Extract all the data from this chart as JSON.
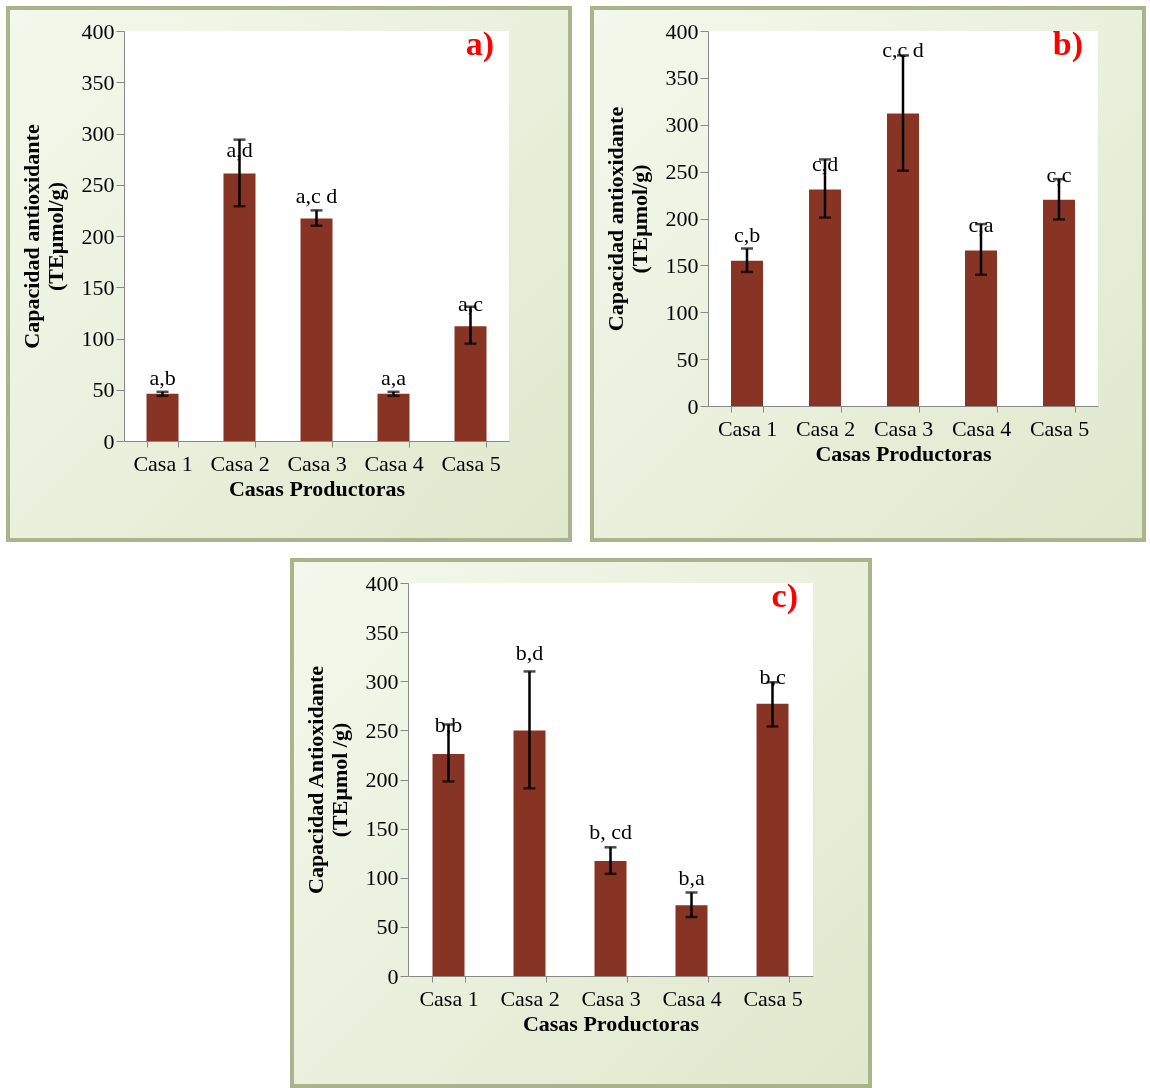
{
  "chart_data": [
    {
      "type": "bar",
      "title": "a)",
      "xlabel": "Casas Productoras",
      "ylabel": "Capacidad antioxidante\n(TEμmol/g)",
      "categories": [
        "Casa 1",
        "Casa 2",
        "Casa 3",
        "Casa 4",
        "Casa 5"
      ],
      "values": [
        46,
        261,
        217,
        46,
        112
      ],
      "color": "#873424",
      "errors": [
        [
          44,
          48
        ],
        [
          229,
          294
        ],
        [
          210,
          225
        ],
        [
          44,
          48
        ],
        [
          95,
          131
        ]
      ],
      "ylim": [
        0,
        400
      ],
      "yticks": [
        0,
        50,
        100,
        150,
        200,
        250,
        300,
        350,
        400
      ],
      "grid": false,
      "annotations": [
        {
          "text": "a,b",
          "x": "Casa 1",
          "y": 48
        },
        {
          "text": "a,d",
          "x": "Casa 2",
          "y": 270
        },
        {
          "text": "a,c d",
          "x": "Casa 3",
          "y": 225
        },
        {
          "text": "a,a",
          "x": "Casa 4",
          "y": 48
        },
        {
          "text": "a,c",
          "x": "Casa 5",
          "y": 120
        }
      ]
    },
    {
      "type": "bar",
      "title": "b)",
      "xlabel": "Casas Productoras",
      "ylabel": "Capacidad antioxidante\n(TEμmol/g)",
      "categories": [
        "Casa 1",
        "Casa 2",
        "Casa 3",
        "Casa 4",
        "Casa 5"
      ],
      "values": [
        155,
        231,
        312,
        166,
        220
      ],
      "color": "#873424",
      "errors": [
        [
          143,
          168
        ],
        [
          201,
          263
        ],
        [
          251,
          374
        ],
        [
          140,
          194
        ],
        [
          199,
          242
        ]
      ],
      "ylim": [
        0,
        400
      ],
      "yticks": [
        0,
        50,
        100,
        150,
        200,
        250,
        300,
        350,
        400
      ],
      "grid": false,
      "annotations": [
        {
          "text": "c,b",
          "x": "Casa 1",
          "y": 168
        },
        {
          "text": "c,d",
          "x": "Casa 2",
          "y": 243
        },
        {
          "text": "c,c d",
          "x": "Casa 3",
          "y": 365
        },
        {
          "text": "c,a",
          "x": "Casa 4",
          "y": 178
        },
        {
          "text": "c,c",
          "x": "Casa 5",
          "y": 232
        }
      ]
    },
    {
      "type": "bar",
      "title": "c)",
      "xlabel": "Casas Productoras",
      "ylabel": "Capacidad Antioxidante\n(TEμmol /g)",
      "categories": [
        "Casa 1",
        "Casa 2",
        "Casa 3",
        "Casa 4",
        "Casa 5"
      ],
      "values": [
        226,
        250,
        117,
        72,
        277
      ],
      "color": "#873424",
      "errors": [
        [
          198,
          256
        ],
        [
          191,
          310
        ],
        [
          104,
          131
        ],
        [
          60,
          85
        ],
        [
          254,
          299
        ]
      ],
      "ylim": [
        0,
        400
      ],
      "yticks": [
        0,
        50,
        100,
        150,
        200,
        250,
        300,
        350,
        400
      ],
      "grid": false,
      "annotations": [
        {
          "text": "b,b",
          "x": "Casa 1",
          "y": 241
        },
        {
          "text": "b,d",
          "x": "Casa 2",
          "y": 315
        },
        {
          "text": "b, cd",
          "x": "Casa 3",
          "y": 132
        },
        {
          "text": "b,a",
          "x": "Casa 4",
          "y": 86
        },
        {
          "text": "b,c",
          "x": "Casa 5",
          "y": 290
        }
      ]
    }
  ]
}
